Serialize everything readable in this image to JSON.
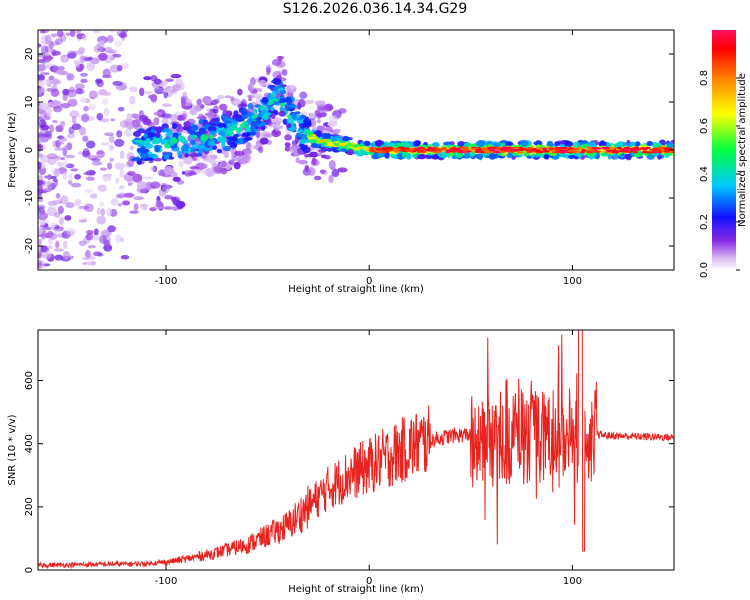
{
  "title": "S126.2026.036.14.34.G29",
  "chart_data": [
    {
      "type": "heatmap",
      "xlabel": "Height of straight line (km)",
      "ylabel": "Frequency (Hz)",
      "xlim": [
        -163,
        150
      ],
      "ylim": [
        -25,
        25
      ],
      "x_ticks": [
        -100,
        0,
        100
      ],
      "y_ticks": [
        -20,
        -10,
        0,
        10,
        20
      ],
      "colorbar": {
        "label": "Normalized spectral amplitude",
        "range": [
          0,
          1
        ],
        "ticks": [
          0.0,
          0.2,
          0.4,
          0.6,
          0.8
        ],
        "colormap": "rainbow"
      },
      "ridge": {
        "x": [
          -110,
          -90,
          -75,
          -62,
          -55,
          -50,
          -44,
          -40,
          -35,
          -30,
          -25,
          -20,
          -10,
          0,
          10,
          20,
          40,
          60,
          80,
          100,
          110,
          130,
          148
        ],
        "y": [
          1,
          2,
          3,
          5,
          7,
          9,
          12,
          8,
          5,
          3,
          2,
          1.5,
          1,
          0,
          0,
          0,
          0,
          0,
          0,
          0,
          0,
          0,
          0
        ]
      }
    },
    {
      "type": "line",
      "xlabel": "Height of straight line (km)",
      "ylabel": "SNR (10 * v/v)",
      "xlim": [
        -163,
        150
      ],
      "ylim": [
        0,
        760
      ],
      "x_ticks": [
        -100,
        0,
        100
      ],
      "y_ticks": [
        0,
        200,
        400,
        600
      ],
      "color": "#e8231f",
      "envelope": {
        "x": [
          -163,
          -110,
          -100,
          -90,
          -75,
          -60,
          -50,
          -40,
          -30,
          -20,
          -10,
          0,
          10,
          20,
          30,
          40,
          50,
          60,
          70,
          80,
          90,
          100,
          105,
          110,
          120,
          150
        ],
        "y": [
          15,
          20,
          25,
          35,
          55,
          80,
          110,
          140,
          200,
          260,
          300,
          330,
          360,
          390,
          410,
          425,
          430,
          430,
          430,
          430,
          425,
          430,
          440,
          430,
          425,
          420
        ]
      }
    }
  ]
}
